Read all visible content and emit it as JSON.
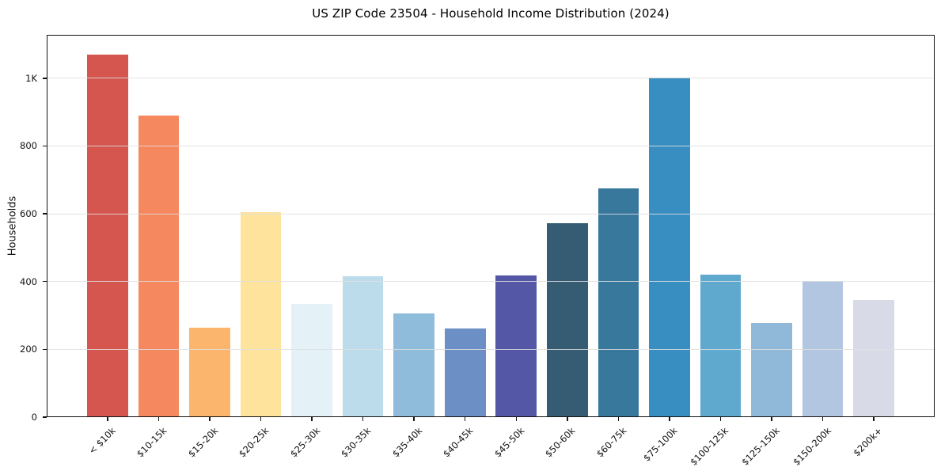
{
  "chart_data": {
    "type": "bar",
    "title": "US ZIP Code 23504 - Household Income Distribution (2024)",
    "xlabel": "",
    "ylabel": "Households",
    "categories": [
      "< $10k",
      "$10-15k",
      "$15-20k",
      "$20-25k",
      "$25-30k",
      "$30-35k",
      "$35-40k",
      "$40-45k",
      "$45-50k",
      "$50-60k",
      "$60-75k",
      "$75-100k",
      "$100-125k",
      "$125-150k",
      "$150-200k",
      "$200k+"
    ],
    "values": [
      1070,
      890,
      265,
      605,
      335,
      415,
      307,
      262,
      418,
      572,
      675,
      1003,
      420,
      277,
      401,
      345
    ],
    "bar_colors": [
      "#d5564e",
      "#f5885f",
      "#fbb56c",
      "#fde39c",
      "#e4f1f6",
      "#bddceb",
      "#8ebcda",
      "#6c90c6",
      "#5457a5",
      "#355c72",
      "#38789d",
      "#398ec1",
      "#5fa8ce",
      "#90b8d9",
      "#b2c5e1",
      "#d8dae8"
    ],
    "ylim": [
      0,
      1128
    ],
    "yticks": [
      0,
      200,
      400,
      600,
      800,
      1000
    ],
    "ytick_labels": [
      "0",
      "200",
      "400",
      "600",
      "800",
      "1K"
    ],
    "grid": "horizontal",
    "grid_above_bars": true,
    "x_tick_rotation": 45,
    "legend": "none",
    "frame_color": "#141414",
    "background_color": "#ffffff"
  }
}
